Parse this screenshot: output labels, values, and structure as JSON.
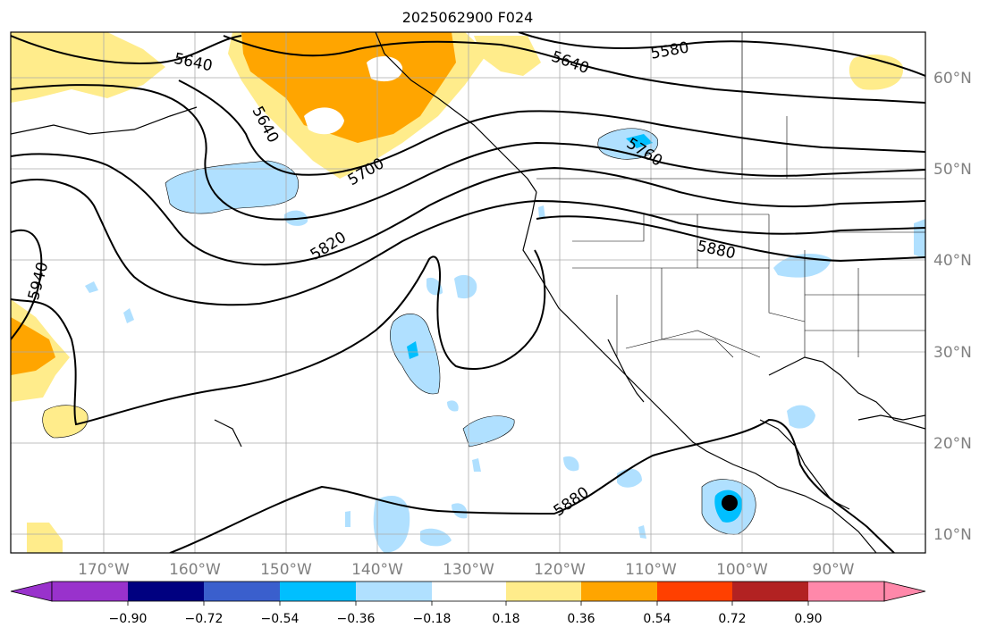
{
  "title": "2025062900 F024",
  "map": {
    "lon_labels": [
      "170°W",
      "160°W",
      "150°W",
      "140°W",
      "130°W",
      "120°W",
      "110°W",
      "100°W",
      "90°W"
    ],
    "lat_labels": [
      "60°N",
      "50°N",
      "40°N",
      "30°N",
      "20°N",
      "10°N"
    ],
    "contour_labels": [
      "5580",
      "5640",
      "5640",
      "5640",
      "5700",
      "5760",
      "5820",
      "5880",
      "5880",
      "5940"
    ],
    "marker": {
      "type": "storm-center",
      "lon": -101,
      "lat": 13
    }
  },
  "colorbar": {
    "ticks": [
      "−0.90",
      "−0.72",
      "−0.54",
      "−0.36",
      "−0.18",
      "0.18",
      "0.36",
      "0.54",
      "0.72",
      "0.90"
    ],
    "colors": [
      "#9932cc",
      "#000080",
      "#3a5fcd",
      "#00bfff",
      "#b0e0ff",
      "#ffffff",
      "#ffec8b",
      "#ffa500",
      "#ff4000",
      "#b22222",
      "#ff88aa"
    ]
  }
}
